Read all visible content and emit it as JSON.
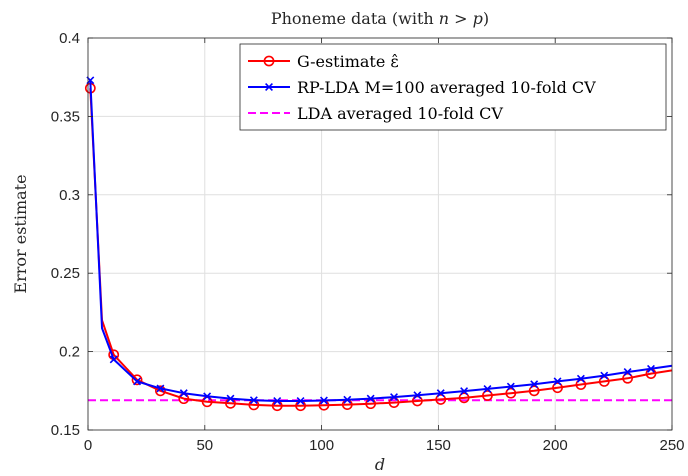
{
  "chart_data": {
    "type": "line",
    "title": "Phoneme data (with ",
    "title_math": "n > p",
    "title_end": ")",
    "xlabel": "d",
    "ylabel": "Error estimate",
    "xlim": [
      0,
      250
    ],
    "ylim": [
      0.15,
      0.4
    ],
    "xticks": [
      0,
      50,
      100,
      150,
      200,
      250
    ],
    "yticks": [
      0.15,
      0.2,
      0.25,
      0.3,
      0.35,
      0.4
    ],
    "ytick_labels": [
      "0.15",
      "0.2",
      "0.25",
      "0.3",
      "0.35",
      "0.4"
    ],
    "grid": true,
    "legend_position": "top-right",
    "series": [
      {
        "name": "G-estimate ε̂",
        "color": "#ff0000",
        "marker": "circle",
        "x": [
          1,
          6,
          11,
          21,
          31,
          41,
          51,
          61,
          71,
          81,
          91,
          101,
          111,
          121,
          131,
          141,
          151,
          161,
          171,
          181,
          191,
          201,
          211,
          221,
          231,
          241,
          250
        ],
        "values": [
          0.368,
          0.22,
          0.198,
          0.182,
          0.175,
          0.17,
          0.168,
          0.167,
          0.166,
          0.1655,
          0.1655,
          0.1658,
          0.1662,
          0.1668,
          0.1675,
          0.1685,
          0.1695,
          0.1705,
          0.172,
          0.1735,
          0.175,
          0.177,
          0.179,
          0.181,
          0.183,
          0.186,
          0.188
        ],
        "marker_x": [
          1,
          11,
          21,
          31,
          41,
          51,
          61,
          71,
          81,
          91,
          101,
          111,
          121,
          131,
          141,
          151,
          161,
          171,
          181,
          191,
          201,
          211,
          221,
          231,
          241
        ]
      },
      {
        "name": "RP-LDA M=100 averaged 10-fold CV",
        "color": "#0000ff",
        "marker": "x",
        "x": [
          1,
          6,
          11,
          21,
          31,
          41,
          51,
          61,
          71,
          81,
          91,
          101,
          111,
          121,
          131,
          141,
          151,
          161,
          171,
          181,
          191,
          201,
          211,
          221,
          231,
          241,
          250
        ],
        "values": [
          0.373,
          0.215,
          0.195,
          0.181,
          0.1765,
          0.1735,
          0.1715,
          0.17,
          0.169,
          0.1685,
          0.1685,
          0.1688,
          0.1693,
          0.17,
          0.171,
          0.1722,
          0.1735,
          0.1748,
          0.1762,
          0.1777,
          0.1792,
          0.181,
          0.1827,
          0.1847,
          0.187,
          0.189,
          0.191
        ],
        "marker_x": [
          1,
          11,
          21,
          31,
          41,
          51,
          61,
          71,
          81,
          91,
          101,
          111,
          121,
          131,
          141,
          151,
          161,
          171,
          181,
          191,
          201,
          211,
          221,
          231,
          241
        ]
      },
      {
        "name": "LDA averaged 10-fold CV",
        "color": "#ff00ff",
        "marker": "none",
        "dashed": true,
        "x": [
          0,
          250
        ],
        "values": [
          0.169,
          0.169
        ]
      }
    ]
  }
}
